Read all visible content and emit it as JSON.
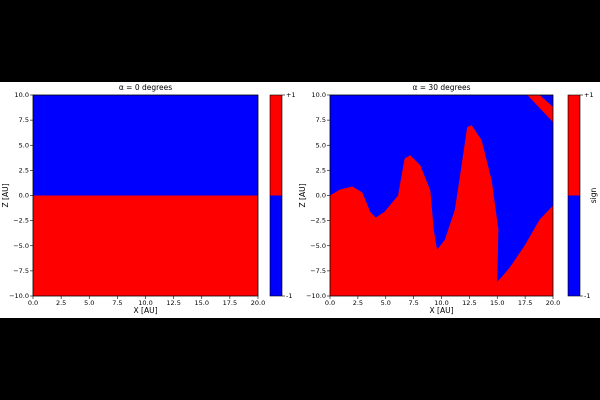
{
  "chart_data": [
    {
      "type": "region",
      "title": "α = 0 degrees",
      "xlabel": "X [AU]",
      "ylabel": "Z [AU]",
      "xlim": [
        0,
        20
      ],
      "ylim": [
        -10,
        10
      ],
      "xticks": [
        {
          "value": 0,
          "label": "0.0"
        },
        {
          "value": 2.5,
          "label": "2.5"
        },
        {
          "value": 5,
          "label": "5.0"
        },
        {
          "value": 7.5,
          "label": "7.5"
        },
        {
          "value": 10,
          "label": "10.0"
        },
        {
          "value": 12.5,
          "label": "12.5"
        },
        {
          "value": 15,
          "label": "15.0"
        },
        {
          "value": 17.5,
          "label": "17.5"
        },
        {
          "value": 20,
          "label": "20.0"
        }
      ],
      "yticks": [
        {
          "value": -10,
          "label": "−10.0"
        },
        {
          "value": -7.5,
          "label": "−7.5"
        },
        {
          "value": -5,
          "label": "−5.0"
        },
        {
          "value": -2.5,
          "label": "−2.5"
        },
        {
          "value": 0,
          "label": "0.0"
        },
        {
          "value": 2.5,
          "label": "2.5"
        },
        {
          "value": 5,
          "label": "5.0"
        },
        {
          "value": 7.5,
          "label": "7.5"
        },
        {
          "value": 10,
          "label": "10.0"
        }
      ],
      "background": -1,
      "regions": [
        {
          "value": 1,
          "x": [
            0,
            20,
            20,
            0
          ],
          "z": [
            0,
            0,
            -10,
            -10
          ]
        }
      ],
      "colormap": [
        {
          "value": -1,
          "color": "#0000ff"
        },
        {
          "value": 1,
          "color": "#ff0000"
        }
      ],
      "clim": [
        -1,
        1
      ],
      "cticks": [
        {
          "value": 1,
          "label": "+1"
        },
        -1
      ]
    },
    {
      "type": "region",
      "title": "α = 30 degrees",
      "xlabel": "X [AU]",
      "ylabel": "Z [AU]",
      "clabel": "sign",
      "xlim": [
        0,
        20
      ],
      "ylim": [
        -10,
        10
      ],
      "xticks": [
        {
          "value": 0,
          "label": "0.0"
        },
        {
          "value": 2.5,
          "label": "2.5"
        },
        {
          "value": 5,
          "label": "5.0"
        },
        {
          "value": 7.5,
          "label": "7.5"
        },
        {
          "value": 10,
          "label": "10.0"
        },
        {
          "value": 12.5,
          "label": "12.5"
        },
        {
          "value": 15,
          "label": "15.0"
        },
        {
          "value": 17.5,
          "label": "17.5"
        },
        {
          "value": 20,
          "label": "20.0"
        }
      ],
      "yticks": [
        {
          "value": -10,
          "label": "−10.0"
        },
        {
          "value": -7.5,
          "label": "−7.5"
        },
        {
          "value": -5,
          "label": "−5.0"
        },
        {
          "value": -2.5,
          "label": "−2.5"
        },
        {
          "value": 0,
          "label": "0.0"
        },
        {
          "value": 2.5,
          "label": "2.5"
        },
        {
          "value": 5,
          "label": "5.0"
        },
        {
          "value": 7.5,
          "label": "7.5"
        },
        {
          "value": 10,
          "label": "10.0"
        }
      ],
      "background": -1,
      "regions": [
        {
          "value": 1,
          "x": [
            0,
            0.9,
            2.0,
            2.9,
            3.6,
            4.1,
            4.9,
            6.1,
            6.5,
            6.7,
            7.2,
            8.1,
            9.0,
            9.3,
            9.6,
            10.3,
            11.2,
            11.8,
            12.3,
            12.7,
            13.6,
            14.5,
            15.1,
            15.0,
            16.1,
            17.5,
            18.8,
            20,
            20,
            0
          ],
          "z": [
            0,
            0.6,
            0.9,
            0.3,
            -1.6,
            -2.2,
            -1.6,
            0,
            2.5,
            3.7,
            4.0,
            3.0,
            0.5,
            -3.4,
            -5.4,
            -4.4,
            -1.4,
            3.0,
            6.8,
            7.0,
            5.5,
            1.5,
            -3.4,
            -8.6,
            -7.2,
            -4.9,
            -2.4,
            -1.0,
            -10,
            -10
          ]
        },
        {
          "value": 1,
          "x": [
            17.7,
            18.8,
            20,
            20
          ],
          "z": [
            10,
            10,
            8.8,
            7.3
          ]
        }
      ],
      "colormap": [
        {
          "value": -1,
          "color": "#0000ff"
        },
        {
          "value": 1,
          "color": "#ff0000"
        }
      ],
      "clim": [
        -1,
        1
      ],
      "cticks": [
        {
          "value": 1,
          "label": "+1"
        },
        -1
      ]
    }
  ]
}
